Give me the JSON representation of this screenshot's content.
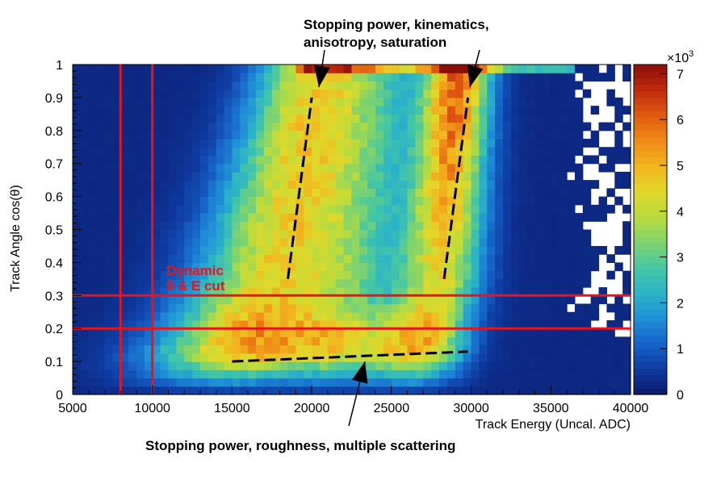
{
  "chart_data": {
    "type": "heatmap",
    "title": "",
    "xlabel": "Track Energy (Uncal. ADC)",
    "ylabel": "Track Angle cos(θ)",
    "xlim": [
      5000,
      40000
    ],
    "ylim": [
      0,
      1
    ],
    "x_ticks": [
      {
        "value": 5000,
        "label": "5000"
      },
      {
        "value": 10000,
        "label": "10000"
      },
      {
        "value": 15000,
        "label": "15000"
      },
      {
        "value": 20000,
        "label": "20000"
      },
      {
        "value": 25000,
        "label": "25000"
      },
      {
        "value": 30000,
        "label": "30000"
      },
      {
        "value": 35000,
        "label": "35000"
      },
      {
        "value": 40000,
        "label": "40000"
      }
    ],
    "y_ticks": [
      {
        "value": 0,
        "label": "0"
      },
      {
        "value": 0.1,
        "label": "0.1"
      },
      {
        "value": 0.2,
        "label": "0.2"
      },
      {
        "value": 0.3,
        "label": "0.3"
      },
      {
        "value": 0.4,
        "label": "0.4"
      },
      {
        "value": 0.5,
        "label": "0.5"
      },
      {
        "value": 0.6,
        "label": "0.6"
      },
      {
        "value": 0.7,
        "label": "0.7"
      },
      {
        "value": 0.8,
        "label": "0.8"
      },
      {
        "value": 0.9,
        "label": "0.9"
      },
      {
        "value": 1,
        "label": "1"
      }
    ],
    "colorbar": {
      "min": 0,
      "max": 7200,
      "multiplier_label": "×10",
      "multiplier_exponent": "3",
      "ticks": [
        {
          "value": 0,
          "label": "0"
        },
        {
          "value": 1000,
          "label": "1"
        },
        {
          "value": 2000,
          "label": "2"
        },
        {
          "value": 3000,
          "label": "3"
        },
        {
          "value": 4000,
          "label": "4"
        },
        {
          "value": 5000,
          "label": "5"
        },
        {
          "value": 6000,
          "label": "6"
        },
        {
          "value": 7000,
          "label": "7"
        }
      ],
      "palette": [
        "#0b1a6b",
        "#0f3aa0",
        "#1663c8",
        "#1f8fd6",
        "#2bb3c8",
        "#46c7a3",
        "#7fd36e",
        "#b8dc3e",
        "#e2d82a",
        "#f2b51f",
        "#ef8a17",
        "#e05a10",
        "#c02a0c",
        "#8a0f0a"
      ]
    },
    "grid": false,
    "bins": {
      "x_count": 70,
      "y_count": 40
    },
    "density_model": {
      "background": 250,
      "band_low": {
        "x_at_y1": 20300,
        "x_slope": -4200,
        "x_curve": -3500,
        "sigma": 2400,
        "amp": 4200
      },
      "band_high": {
        "x_at_y1": 29200,
        "x_slope": -1800,
        "x_curve": -1800,
        "sigma": 1400,
        "amp": 5800
      },
      "low_angle_bump": {
        "y_center": 0.16,
        "y_sigma": 0.07,
        "amp": 1800,
        "x_from": 12500,
        "x_to": 31000
      },
      "top_row": {
        "y_from": 0.975,
        "x_from": 19000,
        "x_to": 36500,
        "amp": 2200
      },
      "empty_region": {
        "x_from": 36000,
        "y_from": 0.18,
        "fraction": 0.55
      }
    },
    "cut_lines": {
      "color": "#e8141c",
      "vertical_x": [
        8000,
        10000
      ],
      "horizontal_y": [
        0.2,
        0.3
      ],
      "label_line1": "Dynamic",
      "label_line2": "θ & E cut"
    },
    "trend_lines": [
      {
        "name": "low-energy-band-trend",
        "points": [
          [
            18500,
            0.35
          ],
          [
            20000,
            0.9
          ]
        ]
      },
      {
        "name": "high-energy-band-trend",
        "points": [
          [
            28300,
            0.35
          ],
          [
            29800,
            0.9
          ]
        ]
      },
      {
        "name": "low-angle-trend",
        "points": [
          [
            15000,
            0.1
          ],
          [
            29800,
            0.13
          ]
        ]
      }
    ],
    "annotations": [
      {
        "text_line1": "Stopping power, kinematics,",
        "text_line2": "anisotropy, saturation"
      },
      {
        "text_line1": "Stopping power, roughness, multiple scattering"
      }
    ]
  }
}
